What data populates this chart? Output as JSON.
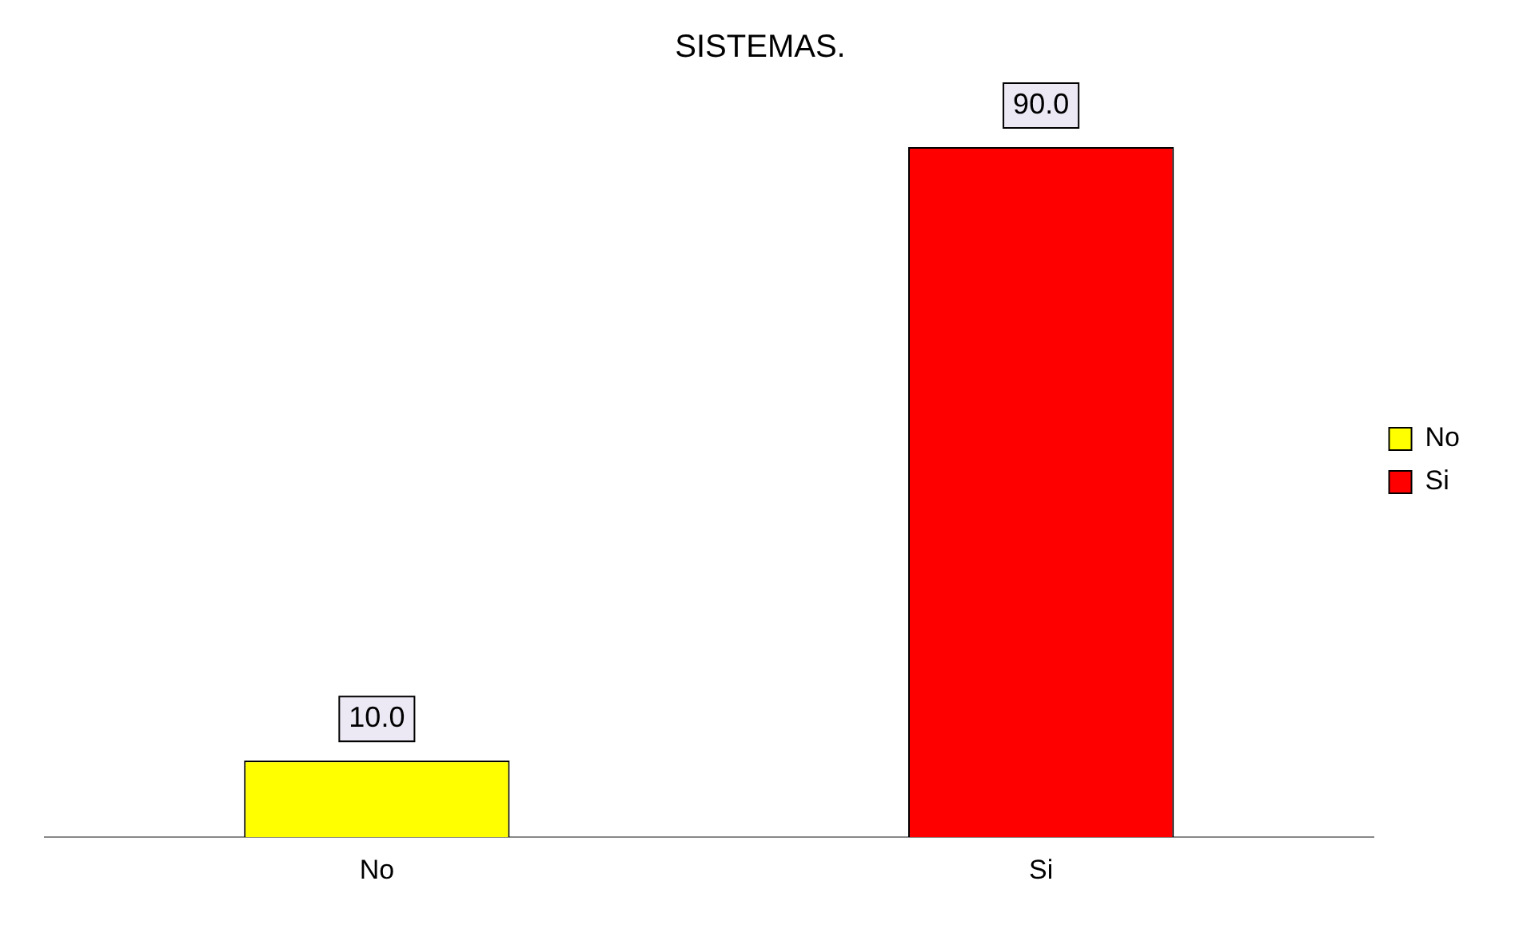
{
  "chart_data": {
    "type": "bar",
    "title": "SISTEMAS.",
    "categories": [
      "No",
      "Si"
    ],
    "series": [
      {
        "name": "No",
        "color": "#ffff00",
        "values": [
          10.0,
          null
        ],
        "value_labels": [
          "10.0",
          null
        ]
      },
      {
        "name": "Si",
        "color": "#ff0000",
        "values": [
          null,
          90.0
        ],
        "value_labels": [
          null,
          "90.0"
        ]
      }
    ],
    "legend": "right",
    "grid": false
  }
}
